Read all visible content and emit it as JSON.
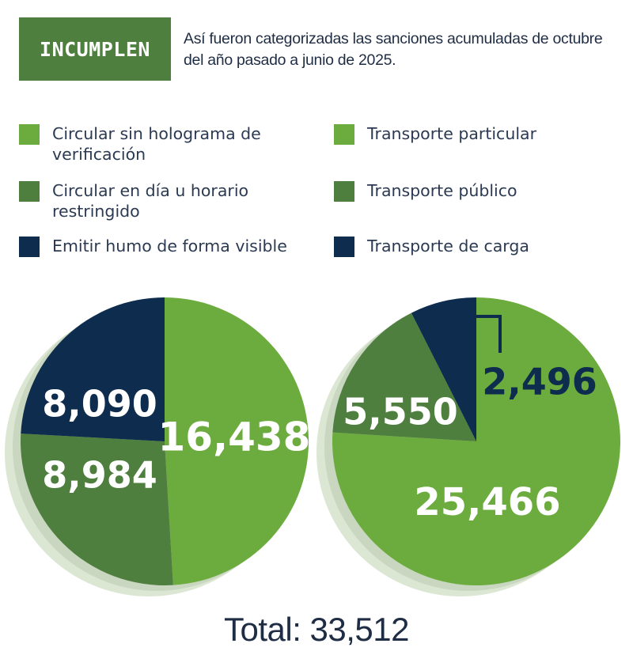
{
  "header": {
    "badge": "INCUMPLEN",
    "subtitle": "Así fueron categorizadas las sanciones acumuladas de octubre del año pasado a junio de 2025."
  },
  "colors": {
    "light_green": "#6cac3e",
    "dark_green": "#4f7f3f",
    "navy": "#0e2c4d",
    "text_dark": "#1f2d44"
  },
  "legend": {
    "left": [
      {
        "label": "Circular sin holograma de verificación",
        "color": "#6cac3e"
      },
      {
        "label": "Circular en día u horario restringido",
        "color": "#4f7f3f"
      },
      {
        "label": "Emitir humo de forma visible",
        "color": "#0e2c4d"
      }
    ],
    "right": [
      {
        "label": "Transporte particular",
        "color": "#6cac3e"
      },
      {
        "label": "Transporte público",
        "color": "#4f7f3f"
      },
      {
        "label": "Transporte de carga",
        "color": "#0e2c4d"
      }
    ]
  },
  "chart_data": [
    {
      "type": "pie",
      "categories": [
        "Circular sin holograma de verificación",
        "Circular en día u horario restringido",
        "Emitir humo de forma visible"
      ],
      "values": [
        16438,
        8984,
        8090
      ],
      "labels": [
        "16,438",
        "8,984",
        "8,090"
      ],
      "colors": [
        "#6cac3e",
        "#4f7f3f",
        "#0e2c4d"
      ]
    },
    {
      "type": "pie",
      "categories": [
        "Transporte particular",
        "Transporte público",
        "Transporte de carga"
      ],
      "values": [
        25466,
        5550,
        2496
      ],
      "labels": [
        "25,466",
        "5,550",
        "2,496"
      ],
      "colors": [
        "#6cac3e",
        "#4f7f3f",
        "#0e2c4d"
      ]
    }
  ],
  "total": "Total: 33,512"
}
